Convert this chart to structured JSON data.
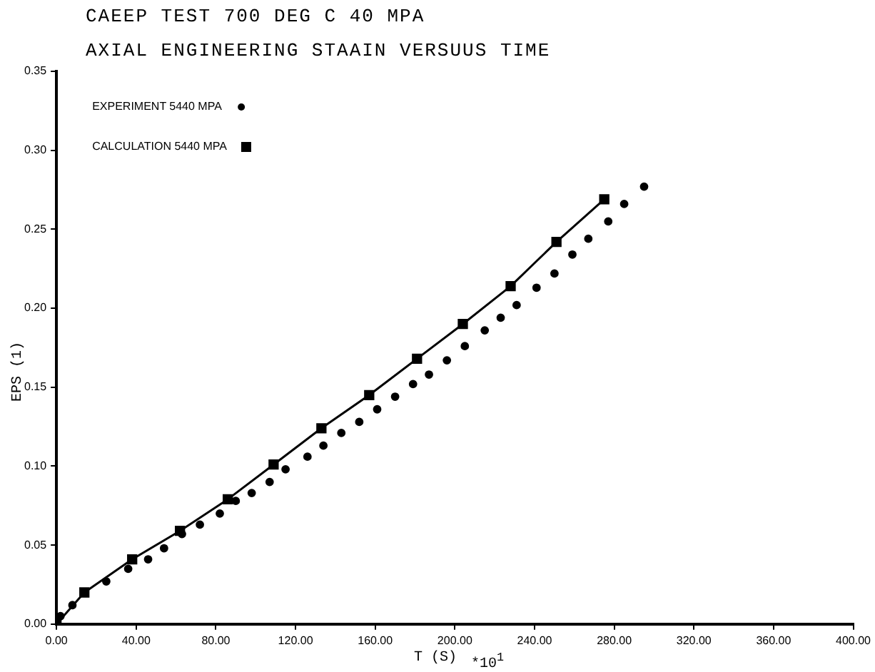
{
  "chart_data": {
    "type": "scatter",
    "title": "CAEEP TEST 700 DEG C 40 MPA",
    "subtitle": "AXIAL ENGINEERING STAAIN VERSUUS TIME",
    "xlabel": "T (S)",
    "ylabel": "EPS (1)",
    "annotations": [
      "*10$^{1}$"
    ],
    "xlim": [
      0,
      400
    ],
    "xticks": [
      {
        "value": 0,
        "label": "0.00"
      },
      {
        "value": 40,
        "label": "40.00"
      },
      {
        "value": 80,
        "label": "80.00"
      },
      {
        "value": 120,
        "label": "120.00"
      },
      {
        "value": 160,
        "label": "160.00"
      },
      {
        "value": 200,
        "label": "200.00"
      },
      {
        "value": 240,
        "label": "240.00"
      },
      {
        "value": 280,
        "label": "280.00"
      },
      {
        "value": 320,
        "label": "320.00"
      },
      {
        "value": 360,
        "label": "360.00"
      },
      {
        "value": 400,
        "label": "400.00"
      }
    ],
    "ylim": [
      0,
      0.35
    ],
    "yticks": [
      {
        "value": 0,
        "label": "0.00"
      },
      {
        "value": 0.05,
        "label": "0.05"
      },
      {
        "value": 0.1,
        "label": "0.10"
      },
      {
        "value": 0.15,
        "label": "0.15"
      },
      {
        "value": 0.2,
        "label": "0.20"
      },
      {
        "value": 0.25,
        "label": "0.25"
      },
      {
        "value": 0.3,
        "label": "0.30"
      },
      {
        "value": 0.35,
        "label": "0.35"
      }
    ],
    "grid": false,
    "legend": "top left",
    "series": [
      {
        "name": "EXPERIMENT 5440 MPA",
        "marker": "circle",
        "color": "#000000",
        "x": [
          2,
          8,
          25,
          36,
          46,
          54,
          63,
          72,
          82,
          90,
          98,
          107,
          115,
          126,
          134,
          143,
          152,
          161,
          170,
          179,
          187,
          196,
          205,
          215,
          223,
          231,
          241,
          250,
          259,
          267,
          277,
          285,
          295
        ],
        "values": [
          0.005,
          0.012,
          0.027,
          0.035,
          0.041,
          0.048,
          0.057,
          0.063,
          0.07,
          0.078,
          0.083,
          0.09,
          0.098,
          0.106,
          0.113,
          0.121,
          0.128,
          0.136,
          0.144,
          0.152,
          0.158,
          0.167,
          0.176,
          0.186,
          0.194,
          0.202,
          0.213,
          0.222,
          0.234,
          0.244,
          0.255,
          0.266,
          0.277
        ]
      },
      {
        "name": "CALCULATION 5440 MPA",
        "type": "line",
        "marker": "square",
        "line_style": "solid",
        "color": "#000000",
        "x": [
          0,
          14,
          38,
          62,
          86,
          109,
          133,
          157,
          181,
          204,
          228,
          251,
          275
        ],
        "values": [
          0,
          0.02,
          0.041,
          0.059,
          0.079,
          0.101,
          0.124,
          0.145,
          0.168,
          0.19,
          0.214,
          0.242,
          0.269
        ]
      }
    ]
  }
}
